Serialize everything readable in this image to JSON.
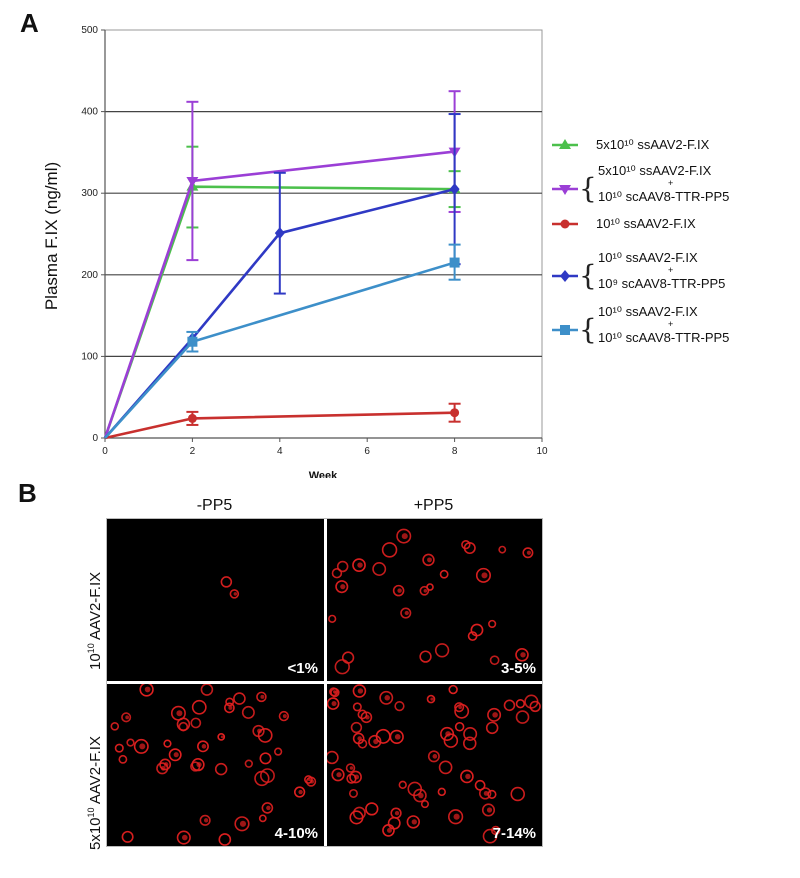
{
  "panel_a_letter": "A",
  "panel_b_letter": "B",
  "chart_data": {
    "type": "line",
    "xlabel": "Week",
    "ylabel": "Plasma F.IX (ng/ml)",
    "xlim": [
      0,
      10
    ],
    "ylim": [
      0,
      500
    ],
    "xticks": [
      0,
      2,
      4,
      6,
      8,
      10
    ],
    "yticks": [
      0,
      100,
      200,
      300,
      400,
      500
    ],
    "grid": "horizontal",
    "legend_position": "right",
    "series": [
      {
        "name": "5x10¹⁰ ssAAV2-F.IX",
        "legend_lines": [
          "5x10¹⁰ ssAAV2-F.IX"
        ],
        "color": "#4cc04c",
        "marker": "triangle",
        "points": [
          {
            "x": 0,
            "y": 0
          },
          {
            "x": 2,
            "y": 308,
            "lo": 258,
            "hi": 357
          },
          {
            "x": 8,
            "y": 305,
            "lo": 283,
            "hi": 327
          }
        ]
      },
      {
        "name": "5x10¹⁰ ssAAV2-F.IX + 10¹⁰ scAAV8-TTR-PP5",
        "legend_lines": [
          "5x10¹⁰ ssAAV2-F.IX",
          "+",
          "10¹⁰ scAAV8-TTR-PP5"
        ],
        "color": "#9b3fd6",
        "marker": "triangle-down",
        "points": [
          {
            "x": 0,
            "y": 0
          },
          {
            "x": 2,
            "y": 315,
            "lo": 218,
            "hi": 412
          },
          {
            "x": 8,
            "y": 351,
            "lo": 277,
            "hi": 425
          }
        ]
      },
      {
        "name": "10¹⁰ ssAAV2-F.IX",
        "legend_lines": [
          "10¹⁰ ssAAV2-F.IX"
        ],
        "color": "#c8302e",
        "marker": "circle",
        "points": [
          {
            "x": 0,
            "y": 0
          },
          {
            "x": 2,
            "y": 24,
            "lo": 16,
            "hi": 32
          },
          {
            "x": 8,
            "y": 31,
            "lo": 20,
            "hi": 42
          }
        ]
      },
      {
        "name": "10¹⁰ ssAAV2-F.IX + 10⁹ scAAV8-TTR-PP5",
        "legend_lines": [
          "10¹⁰ ssAAV2-F.IX",
          "+",
          "10⁹ scAAV8-TTR-PP5"
        ],
        "color": "#2f39c4",
        "marker": "diamond",
        "points": [
          {
            "x": 0,
            "y": 0
          },
          {
            "x": 2,
            "y": 122
          },
          {
            "x": 4,
            "y": 251,
            "lo": 177,
            "hi": 325
          },
          {
            "x": 8,
            "y": 305,
            "lo": 213,
            "hi": 397
          }
        ]
      },
      {
        "name": "10¹⁰ ssAAV2-F.IX + 10¹⁰ scAAV8-TTR-PP5",
        "legend_lines": [
          "10¹⁰ ssAAV2-F.IX",
          "+",
          "10¹⁰ scAAV8-TTR-PP5"
        ],
        "color": "#3d8fc9",
        "marker": "square",
        "points": [
          {
            "x": 0,
            "y": 0
          },
          {
            "x": 2,
            "y": 118,
            "lo": 106,
            "hi": 130
          },
          {
            "x": 8,
            "y": 215,
            "lo": 194,
            "hi": 237
          }
        ]
      }
    ]
  },
  "panel_b": {
    "column_headers": [
      "-PP5",
      "+PP5"
    ],
    "row_labels": [
      {
        "base": "10",
        "sup": "10",
        "rest": " AAV2-F.IX"
      },
      {
        "base": "5x10",
        "sup": "10",
        "rest": " AAV2-F.IX"
      }
    ],
    "percentages": [
      [
        "<1%",
        "3-5%"
      ],
      [
        "4-10%",
        "7-14%"
      ]
    ],
    "cell_colors": {
      "background": "#000000",
      "stain": "#e02020"
    }
  }
}
